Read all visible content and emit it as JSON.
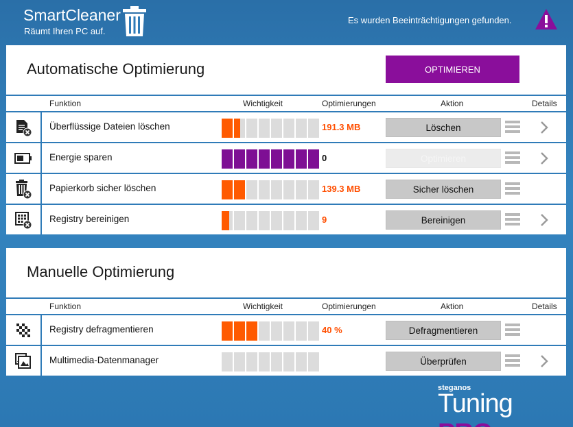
{
  "header": {
    "app_title": "SmartCleaner",
    "app_subtitle": "Räumt Ihren PC auf.",
    "warning_text": "Es wurden Beeinträchtigungen gefunden."
  },
  "columns": {
    "funktion": "Funktion",
    "wichtigkeit": "Wichtigkeit",
    "optimierungen": "Optimierungen",
    "aktion": "Aktion",
    "details": "Details"
  },
  "auto": {
    "title": "Automatische Optimierung",
    "optimize_label": "OPTIMIEREN",
    "rows": [
      {
        "function": "Überflüssige Dateien löschen",
        "value": "191.3 MB",
        "action": "Löschen",
        "importance": "1.5 of 8",
        "icon": "file-delete-icon"
      },
      {
        "function": "Energie sparen",
        "value": "0",
        "action": "Optimieren",
        "importance": "8 of 8",
        "icon": "battery-icon"
      },
      {
        "function": "Papierkorb sicher löschen",
        "value": "139.3 MB",
        "action": "Sicher löschen",
        "importance": "2 of 8",
        "icon": "trash-delete-icon"
      },
      {
        "function": "Registry bereinigen",
        "value": "9",
        "action": "Bereinigen",
        "importance": "1 of 8",
        "icon": "registry-delete-icon"
      }
    ]
  },
  "manual": {
    "title": "Manuelle Optimierung",
    "rows": [
      {
        "function": "Registry defragmentieren",
        "value": "40 %",
        "action": "Defragmentieren",
        "importance": "3 of 8",
        "icon": "defrag-icon"
      },
      {
        "function": "Multimedia-Datenmanager",
        "value": "",
        "action": "Überprüfen",
        "importance": "0 of 8",
        "icon": "images-icon"
      }
    ]
  },
  "brand": {
    "company": "steganos",
    "product": "Tuning",
    "edition": "PRO"
  },
  "colors": {
    "background": "#2f7bb8",
    "accent_purple": "#8a0e9b",
    "importance_orange": "#ff5a00",
    "value_orange": "#ff4e00",
    "button_gray": "#c8c8c8"
  }
}
